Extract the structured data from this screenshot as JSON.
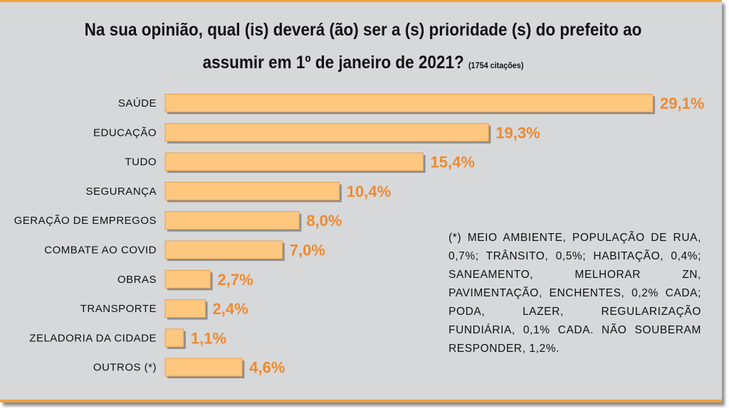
{
  "title": {
    "line1": "Na sua opinião, qual (is) deverá (ão) ser a (s) prioridade (s) do prefeito ao",
    "line2": "assumir em 1º de janeiro de 2021?",
    "count": "(1754 citações)"
  },
  "footnote": "(*) MEIO AMBIENTE, POPULAÇÃO DE RUA, 0,7%; TRÂNSITO, 0,5%; HABITAÇÃO, 0,4%; SANEAMENTO, MELHORAR ZN, PAVIMENTAÇÃO, ENCHENTES, 0,2% CADA; PODA, LAZER, REGULARIZAÇÃO FUNDIÁRIA, 0,1% CADA. NÃO SOUBERAM RESPONDER, 1,2%.",
  "colors": {
    "bar": "#fdc77f",
    "bar_border": "#e9a04e",
    "value_label": "#ee8a2f",
    "frame": "#d7d8d9",
    "accent": "#f2a23a"
  },
  "chart_data": {
    "type": "bar",
    "orientation": "horizontal",
    "title": "Na sua opinião, qual (is) deverá (ão) ser a (s) prioridade (s) do prefeito ao assumir em 1º de janeiro de 2021? (1754 citações)",
    "categories": [
      "SAÚDE",
      "EDUCAÇÃO",
      "TUDO",
      "SEGURANÇA",
      "GERAÇÃO DE EMPREGOS",
      "COMBATE AO COVID",
      "OBRAS",
      "TRANSPORTE",
      "ZELADORIA DA CIDADE",
      "OUTROS (*)"
    ],
    "values": [
      29.1,
      19.3,
      15.4,
      10.4,
      8.0,
      7.0,
      2.7,
      2.4,
      1.1,
      4.6
    ],
    "labels": [
      "29,1%",
      "19,3%",
      "15,4%",
      "10,4%",
      "8,0%",
      "7,0%",
      "2,7%",
      "2,4%",
      "1,1%",
      "4,6%"
    ],
    "xlabel": "",
    "ylabel": "",
    "grid": false,
    "legend": "none"
  }
}
